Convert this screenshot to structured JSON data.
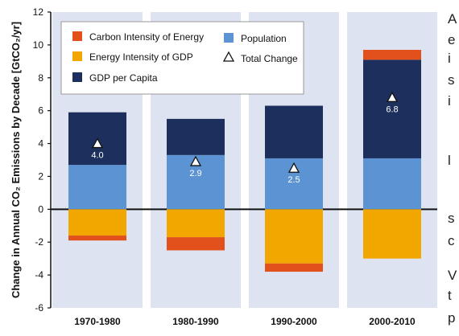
{
  "chart_data": {
    "type": "bar",
    "stacked": true,
    "ylabel": "Change in Annual CO₂ Emissions by Decade [GtCO₂/yr]",
    "ylim": [
      -6,
      12
    ],
    "yticks": [
      "-6",
      "-4",
      "-2",
      "0",
      "2",
      "4",
      "6",
      "8",
      "10",
      "12"
    ],
    "categories": [
      "1970-1980",
      "1980-1990",
      "1990-2000",
      "2000-2010"
    ],
    "series": [
      {
        "name": "Carbon Intensity of Energy",
        "color": "#e2501b",
        "values": [
          -0.3,
          -0.8,
          -0.5,
          0.6
        ]
      },
      {
        "name": "Energy Intensity of GDP",
        "color": "#f2a600",
        "values": [
          -1.6,
          -1.7,
          -3.3,
          -3.0
        ]
      },
      {
        "name": "GDP per Capita",
        "color": "#1d2f5c",
        "values": [
          3.2,
          2.2,
          3.2,
          6.0
        ]
      },
      {
        "name": "Population",
        "color": "#5b93d3",
        "values": [
          2.7,
          3.3,
          3.1,
          3.1
        ]
      }
    ],
    "total_change": {
      "name": "Total Change",
      "values": [
        4.0,
        2.9,
        2.5,
        6.8
      ],
      "labels": [
        "4.0",
        "2.9",
        "2.5",
        "6.8"
      ]
    },
    "legend_order": [
      "Carbon Intensity of Energy",
      "Population",
      "Energy Intensity of GDP",
      "Total Change",
      "GDP per Capita"
    ],
    "legend_position": "top-left",
    "panel_background": "#dde3f0",
    "grid": false
  },
  "clipped_text": [
    "A",
    "e",
    "i",
    "s",
    "i",
    "l",
    "s",
    "c",
    "V",
    "t",
    "p"
  ]
}
